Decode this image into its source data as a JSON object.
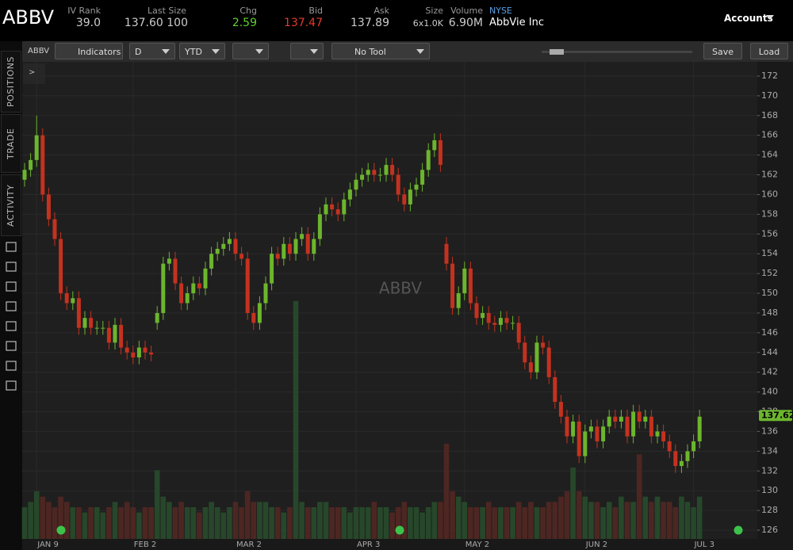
{
  "header": {
    "symbol": "ABBV",
    "fields": [
      {
        "label": "IV Rank",
        "value": "39.0"
      },
      {
        "label": "Last Size",
        "value": "137.60 100"
      },
      {
        "label": "Chg",
        "value": "2.59"
      },
      {
        "label": "Bid",
        "value": "137.47"
      },
      {
        "label": "Ask",
        "value": "137.89"
      },
      {
        "label": "Size",
        "value": "6x1.0K"
      },
      {
        "label": "Volume",
        "value": "6.90M"
      }
    ],
    "exchange": "NYSE",
    "company": "AbbVie Inc",
    "accounts": "Accounts"
  },
  "toolbar": {
    "symbol": "ABBV",
    "indicators": "Indicators",
    "aggregation": "D",
    "range": "YTD",
    "tool": "No Tool",
    "save": "Save",
    "load": "Load",
    "expand": ">"
  },
  "sidebar": {
    "tabs": [
      "POSITIONS",
      "TRADE",
      "ACTIVITY"
    ]
  },
  "chart_data": {
    "type": "candlestick",
    "watermark": "ABBV",
    "last_price": 137.62,
    "up_color": "#6cb52d",
    "down_color": "#c4321f",
    "volume_up_color": "#27472a",
    "volume_down_color": "#4d2622",
    "grid": true,
    "ylim": [
      126,
      172
    ],
    "yticks": [
      126,
      128,
      130,
      132,
      134,
      136,
      138,
      140,
      142,
      144,
      146,
      148,
      150,
      152,
      154,
      156,
      158,
      160,
      162,
      164,
      166,
      168,
      170,
      172
    ],
    "xticks": [
      {
        "value": 2,
        "label": "JAN 9"
      },
      {
        "value": 18,
        "label": "FEB 2"
      },
      {
        "value": 35,
        "label": "MAR 2"
      },
      {
        "value": 55,
        "label": "APR 3"
      },
      {
        "value": 73,
        "label": "MAY 2"
      },
      {
        "value": 93,
        "label": "JUN 2"
      },
      {
        "value": 111,
        "label": "JUL 3"
      }
    ],
    "open": [
      161.5,
      162.5,
      163.5,
      166,
      160,
      157.5,
      155.5,
      150,
      149,
      149.5,
      146.5,
      147.5,
      146.5,
      146.5,
      146.5,
      145,
      146.8,
      144.5,
      144,
      143.5,
      144.5,
      144,
      147,
      148,
      153,
      153.5,
      151,
      149,
      150,
      151,
      150.5,
      152.5,
      154,
      154.5,
      155,
      155.5,
      154,
      153.5,
      148,
      147,
      149,
      151,
      154,
      153.5,
      155,
      154,
      155.5,
      156,
      154,
      155.5,
      158,
      159,
      158.5,
      158,
      159.5,
      160.5,
      161.5,
      162,
      162.5,
      162,
      162,
      163,
      162,
      160,
      159,
      160.5,
      161,
      162.5,
      164.5,
      165.5,
      155,
      153,
      148.5,
      150,
      152.5,
      149,
      147.5,
      148,
      147,
      146.8,
      147.5,
      147,
      147,
      145,
      143,
      142,
      145,
      144.5,
      141.5,
      139,
      137.5,
      135.5,
      137,
      133.5,
      136,
      136.5,
      135,
      136.5,
      137.5,
      137,
      137.5,
      135.5,
      138,
      137,
      137.5,
      135.5,
      136,
      135,
      134,
      132.5,
      133,
      134,
      135
    ],
    "high": [
      163.2,
      164.2,
      168,
      166.7,
      160.7,
      158.2,
      156.2,
      150.7,
      150.2,
      150.2,
      148.2,
      148.2,
      147.2,
      147.2,
      147.2,
      147.5,
      147.5,
      145.2,
      144.7,
      145.2,
      145.2,
      144.7,
      148.7,
      153.7,
      154.2,
      154.2,
      151.7,
      150.7,
      151.7,
      151.7,
      153.2,
      154.7,
      155.2,
      155.7,
      156.2,
      156.2,
      154.7,
      154.2,
      148.7,
      149.7,
      151.7,
      154.7,
      154.7,
      155.7,
      155.7,
      156.2,
      156.7,
      156.7,
      156.2,
      158.7,
      159.7,
      159.7,
      159.2,
      160.2,
      161.2,
      162.2,
      162.7,
      163.2,
      163.2,
      162.7,
      163.7,
      163.7,
      162.7,
      160.7,
      161.2,
      161.7,
      163.2,
      165.2,
      166.2,
      166.2,
      155.7,
      153.7,
      150.7,
      153.2,
      153.2,
      149.7,
      148.7,
      148.7,
      147.7,
      148.2,
      148.2,
      147.7,
      147.7,
      145.7,
      143.7,
      145.7,
      145.7,
      145.2,
      142.2,
      139.7,
      138.2,
      137.7,
      137.7,
      136.7,
      137.2,
      137.2,
      137.2,
      138.2,
      138.2,
      138.2,
      138.2,
      138.7,
      138.7,
      138.2,
      138.2,
      136.7,
      136.7,
      135.7,
      134.7,
      133.7,
      134.7,
      135.7,
      138.2
    ],
    "low": [
      160.8,
      161.8,
      162.8,
      159.3,
      156.8,
      154.8,
      149.3,
      148.3,
      148.3,
      145.8,
      145.8,
      145.8,
      145.8,
      145.8,
      144.3,
      144.3,
      143.8,
      143.3,
      142.8,
      142.8,
      143.3,
      143.1,
      146.3,
      147.3,
      152.3,
      150.3,
      148.3,
      148.3,
      149.3,
      149.8,
      149.8,
      151.8,
      153.3,
      153.8,
      154.3,
      153.3,
      152.8,
      147.3,
      146.3,
      146.3,
      148.3,
      150.3,
      152.8,
      152.8,
      153.3,
      153.3,
      154.8,
      153.3,
      153.3,
      154.8,
      157.3,
      157.8,
      157.3,
      157.3,
      158.8,
      159.8,
      160.8,
      161.3,
      161.3,
      161.3,
      161.3,
      161.3,
      159.3,
      158.3,
      158.3,
      159.8,
      160.3,
      161.8,
      163.8,
      162.3,
      152.3,
      147.8,
      147.8,
      149.3,
      148.3,
      146.8,
      146.8,
      146.3,
      146.1,
      146.1,
      146.3,
      146.3,
      144.3,
      142.3,
      141.3,
      141.3,
      143.8,
      140.8,
      138.3,
      136.8,
      134.8,
      134.8,
      132.8,
      132.8,
      135.3,
      134.3,
      134.3,
      135.8,
      136.3,
      136.3,
      134.8,
      134.8,
      136.3,
      136.3,
      134.8,
      134.8,
      134.3,
      133.3,
      131.8,
      131.8,
      132.3,
      133.3,
      134.3
    ],
    "close": [
      162.5,
      163.5,
      166,
      160,
      157.5,
      155.5,
      150,
      149,
      149.5,
      146.5,
      147.5,
      146.5,
      146.5,
      146.5,
      145,
      146.8,
      144.5,
      144,
      143.5,
      144.5,
      144,
      143.8,
      148,
      153,
      153.5,
      151,
      149,
      150,
      151,
      150.5,
      152.5,
      154,
      154.5,
      155,
      155.5,
      154,
      153.5,
      148,
      147,
      149,
      151,
      154,
      153.5,
      155,
      154,
      155.5,
      156,
      154,
      155.5,
      158,
      159,
      158.5,
      158,
      159.5,
      160.5,
      161.5,
      162,
      162.5,
      162,
      162,
      163,
      162,
      160,
      159,
      160.5,
      161,
      162.5,
      164.5,
      165.5,
      163,
      153,
      148.5,
      150,
      152.5,
      149,
      147.5,
      148,
      147,
      146.8,
      147.5,
      147,
      147,
      145,
      143,
      142,
      145,
      144.5,
      141.5,
      139,
      137.5,
      135.5,
      137,
      133.5,
      136,
      136.5,
      135,
      136.5,
      137.5,
      137,
      137.5,
      135.5,
      138,
      137,
      137.5,
      135.5,
      136,
      135,
      134,
      132.5,
      133,
      134,
      135,
      137.5
    ],
    "volume": [
      6,
      7,
      9,
      8,
      7,
      6,
      8,
      7,
      6,
      6,
      5,
      6,
      6,
      5,
      6,
      7,
      6,
      7,
      6,
      5,
      6,
      6,
      13,
      8,
      7,
      6,
      7,
      6,
      6,
      5,
      6,
      7,
      6,
      5,
      6,
      7,
      6,
      9,
      7,
      7,
      7,
      6,
      6,
      5,
      6,
      45,
      7,
      6,
      6,
      7,
      7,
      6,
      6,
      6,
      5,
      6,
      6,
      6,
      7,
      6,
      6,
      5,
      6,
      7,
      6,
      6,
      5,
      6,
      7,
      7,
      18,
      9,
      8,
      7,
      6,
      6,
      6,
      7,
      6,
      6,
      6,
      6,
      7,
      6,
      7,
      6,
      6,
      7,
      7,
      8,
      9,
      13.5,
      9,
      8,
      7,
      7,
      6,
      7,
      6,
      8,
      7,
      7,
      16,
      8,
      7,
      8,
      7,
      7,
      6,
      8,
      7,
      6,
      8
    ]
  }
}
